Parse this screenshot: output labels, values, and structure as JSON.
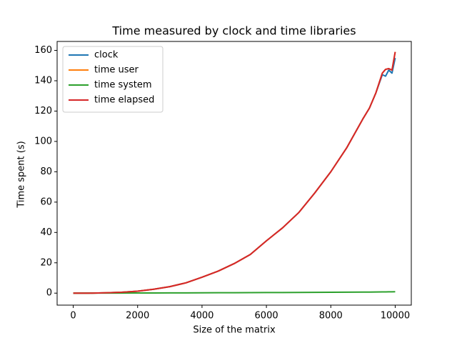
{
  "chart_data": {
    "type": "line",
    "title": "Time measured by clock and time libraries",
    "x_label": "Size of the matrix",
    "y_label": "Time spent (s)",
    "x": [
      0,
      500,
      1000,
      1500,
      2000,
      2500,
      3000,
      3500,
      4000,
      4500,
      5000,
      5500,
      6000,
      6500,
      7000,
      7500,
      8000,
      8500,
      9000,
      9200,
      9400,
      9600,
      9700,
      9800,
      9900,
      10000
    ],
    "series": [
      {
        "name": "clock",
        "color": "#1f77b4",
        "values": [
          0,
          0,
          0.2,
          0.6,
          1.3,
          2.6,
          4.3,
          6.8,
          10.5,
          14.5,
          19.5,
          25.5,
          34.5,
          43,
          53,
          66,
          80,
          96,
          115,
          122,
          132,
          144,
          143,
          147,
          145,
          155
        ]
      },
      {
        "name": "time user",
        "color": "#ff7f0e",
        "values": [
          0,
          0,
          0.2,
          0.6,
          1.3,
          2.6,
          4.3,
          6.8,
          10.5,
          14.5,
          19.5,
          25.5,
          34.5,
          43,
          53,
          66,
          80,
          96,
          115,
          122,
          132,
          145,
          147.5,
          148,
          147,
          159
        ]
      },
      {
        "name": "time system",
        "color": "#2ca02c",
        "values": [
          0,
          0.02,
          0.05,
          0.07,
          0.1,
          0.12,
          0.15,
          0.18,
          0.22,
          0.26,
          0.3,
          0.34,
          0.38,
          0.42,
          0.47,
          0.52,
          0.57,
          0.62,
          0.68,
          0.72,
          0.76,
          0.8,
          0.83,
          0.86,
          0.9,
          0.95
        ]
      },
      {
        "name": "time elapsed",
        "color": "#d62728",
        "values": [
          0,
          0,
          0.2,
          0.6,
          1.3,
          2.6,
          4.3,
          6.8,
          10.5,
          14.5,
          19.5,
          25.5,
          34.5,
          43,
          53,
          66,
          80,
          96,
          115,
          122,
          132,
          145,
          147.5,
          148,
          147,
          159
        ]
      }
    ],
    "xlim": [
      -500,
      10500
    ],
    "xticks": [
      0,
      2000,
      4000,
      6000,
      8000,
      10000
    ],
    "ylim": [
      -7.9,
      165.9
    ],
    "yticks": [
      0,
      20,
      40,
      60,
      80,
      100,
      120,
      140,
      160
    ],
    "legend": "upper left",
    "grid": false
  }
}
